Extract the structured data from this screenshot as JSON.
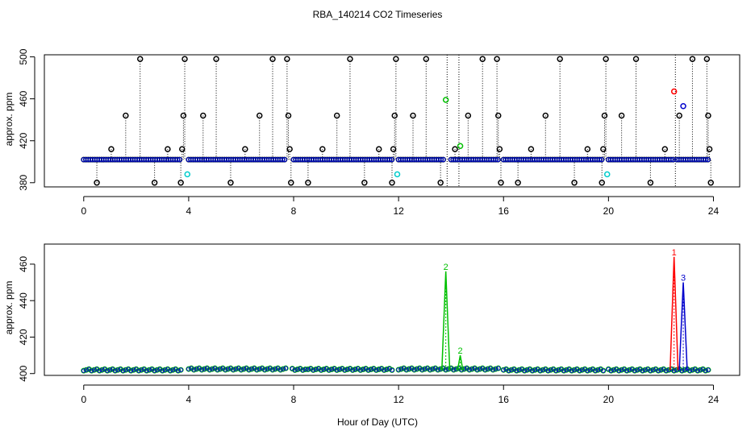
{
  "figure": {
    "title": "RBA_140214  CO2 Timeseries",
    "xlabel": "Hour of Day (UTC)"
  },
  "colors": {
    "series1": "#ff0000",
    "series2": "#00c000",
    "series3": "#0000cc",
    "series4": "#00cccc",
    "high_low": "#000000",
    "guide": "#000000"
  },
  "chart_data": [
    {
      "type": "scatter",
      "panel": "top",
      "title": "",
      "ylabel": "approx. ppm",
      "xlim": [
        -1.5,
        25
      ],
      "ylim": [
        376,
        502
      ],
      "x_ticks": [
        "0",
        "4",
        "8",
        "12",
        "16",
        "20",
        "24"
      ],
      "y_ticks": [
        "380",
        "420",
        "460",
        "500"
      ],
      "baseline_segments": [
        [
          0,
          3.7
        ],
        [
          4.0,
          7.7
        ],
        [
          8.0,
          11.8
        ],
        [
          12.0,
          13.7
        ],
        [
          14.0,
          15.85
        ],
        [
          16.0,
          19.8
        ],
        [
          20.0,
          22.5
        ],
        [
          22.6,
          23.8
        ]
      ],
      "baseline_level": 402,
      "black_points": [
        {
          "x": 0.5,
          "y": 380
        },
        {
          "x": 1.05,
          "y": 412
        },
        {
          "x": 1.6,
          "y": 444
        },
        {
          "x": 2.15,
          "y": 498
        },
        {
          "x": 2.7,
          "y": 380
        },
        {
          "x": 3.2,
          "y": 412
        },
        {
          "x": 3.7,
          "y": 380
        },
        {
          "x": 3.75,
          "y": 412
        },
        {
          "x": 3.8,
          "y": 444
        },
        {
          "x": 3.85,
          "y": 498
        },
        {
          "x": 4.55,
          "y": 444
        },
        {
          "x": 5.05,
          "y": 498
        },
        {
          "x": 5.6,
          "y": 380
        },
        {
          "x": 6.15,
          "y": 412
        },
        {
          "x": 6.7,
          "y": 444
        },
        {
          "x": 7.2,
          "y": 498
        },
        {
          "x": 7.75,
          "y": 498
        },
        {
          "x": 7.8,
          "y": 444
        },
        {
          "x": 7.85,
          "y": 412
        },
        {
          "x": 7.9,
          "y": 380
        },
        {
          "x": 8.55,
          "y": 380
        },
        {
          "x": 9.1,
          "y": 412
        },
        {
          "x": 9.65,
          "y": 444
        },
        {
          "x": 10.15,
          "y": 498
        },
        {
          "x": 10.7,
          "y": 380
        },
        {
          "x": 11.25,
          "y": 412
        },
        {
          "x": 11.75,
          "y": 380
        },
        {
          "x": 11.8,
          "y": 412
        },
        {
          "x": 11.85,
          "y": 444
        },
        {
          "x": 11.9,
          "y": 498
        },
        {
          "x": 12.55,
          "y": 444
        },
        {
          "x": 13.05,
          "y": 498
        },
        {
          "x": 13.6,
          "y": 380
        },
        {
          "x": 14.15,
          "y": 412
        },
        {
          "x": 14.65,
          "y": 444
        },
        {
          "x": 15.2,
          "y": 498
        },
        {
          "x": 15.75,
          "y": 498
        },
        {
          "x": 15.8,
          "y": 444
        },
        {
          "x": 15.85,
          "y": 412
        },
        {
          "x": 15.9,
          "y": 380
        },
        {
          "x": 16.55,
          "y": 380
        },
        {
          "x": 17.05,
          "y": 412
        },
        {
          "x": 17.6,
          "y": 444
        },
        {
          "x": 18.15,
          "y": 498
        },
        {
          "x": 18.7,
          "y": 380
        },
        {
          "x": 19.2,
          "y": 412
        },
        {
          "x": 19.75,
          "y": 380
        },
        {
          "x": 19.8,
          "y": 412
        },
        {
          "x": 19.85,
          "y": 444
        },
        {
          "x": 19.9,
          "y": 498
        },
        {
          "x": 20.5,
          "y": 444
        },
        {
          "x": 21.05,
          "y": 498
        },
        {
          "x": 21.6,
          "y": 380
        },
        {
          "x": 22.15,
          "y": 412
        },
        {
          "x": 22.7,
          "y": 444
        },
        {
          "x": 23.2,
          "y": 498
        },
        {
          "x": 23.75,
          "y": 498
        },
        {
          "x": 23.8,
          "y": 444
        },
        {
          "x": 23.85,
          "y": 412
        },
        {
          "x": 23.9,
          "y": 380
        }
      ],
      "colored_points": [
        {
          "x": 13.8,
          "y": 459,
          "series": "series2"
        },
        {
          "x": 14.35,
          "y": 415,
          "series": "series2"
        },
        {
          "x": 22.5,
          "y": 467,
          "series": "series1"
        },
        {
          "x": 22.85,
          "y": 453,
          "series": "series3"
        },
        {
          "x": 3.95,
          "y": 388,
          "series": "series4"
        },
        {
          "x": 11.95,
          "y": 388,
          "series": "series4"
        },
        {
          "x": 19.95,
          "y": 388,
          "series": "series4"
        }
      ],
      "vertical_markers": [
        13.85,
        14.3,
        22.55
      ]
    },
    {
      "type": "line",
      "panel": "bottom",
      "title": "",
      "ylabel": "approx. ppm",
      "xlim": [
        -1.5,
        25
      ],
      "ylim": [
        399,
        471
      ],
      "x_ticks": [
        "0",
        "4",
        "8",
        "12",
        "16",
        "20",
        "24"
      ],
      "y_ticks": [
        "400",
        "420",
        "440",
        "460"
      ],
      "baseline_segments": [
        {
          "from": 0,
          "to": 3.7,
          "y": 402
        },
        {
          "from": 4.0,
          "to": 7.7,
          "y": 402.5
        },
        {
          "from": 7.95,
          "to": 11.8,
          "y": 402.3
        },
        {
          "from": 12.0,
          "to": 15.85,
          "y": 402.5
        },
        {
          "from": 16.0,
          "to": 19.8,
          "y": 402
        },
        {
          "from": 20.0,
          "to": 23.8,
          "y": 402
        }
      ],
      "series": [
        {
          "name": "1",
          "series_key": "series1",
          "x": [
            22.35,
            22.5,
            22.65
          ],
          "y": [
            402,
            464,
            402
          ]
        },
        {
          "name": "2",
          "series_key": "series2",
          "x": [
            13.65,
            13.8,
            13.95
          ],
          "y": [
            402,
            456,
            402
          ]
        },
        {
          "name": "2",
          "series_key": "series2",
          "x": [
            14.25,
            14.35,
            14.45
          ],
          "y": [
            402,
            410,
            402
          ]
        },
        {
          "name": "3",
          "series_key": "series3",
          "x": [
            22.7,
            22.85,
            23.0
          ],
          "y": [
            402,
            450,
            402
          ]
        }
      ],
      "peak_labels": [
        {
          "text": "1",
          "x": 22.5,
          "y": 464,
          "series": "series1"
        },
        {
          "text": "2",
          "x": 13.8,
          "y": 456,
          "series": "series2"
        },
        {
          "text": "2",
          "x": 14.35,
          "y": 410,
          "series": "series2"
        },
        {
          "text": "3",
          "x": 22.85,
          "y": 450,
          "series": "series3"
        }
      ]
    }
  ]
}
